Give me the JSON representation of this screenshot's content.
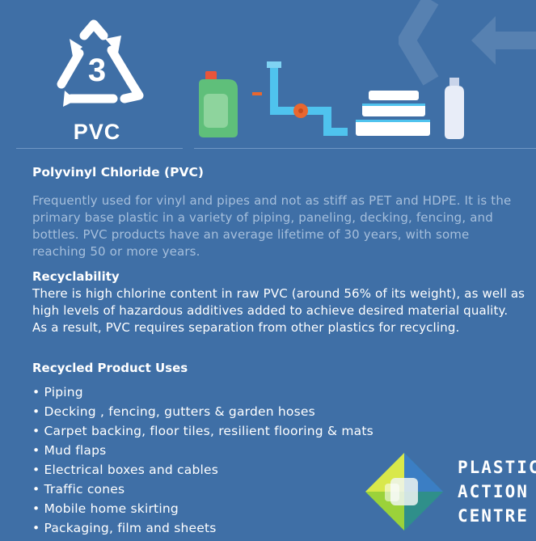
{
  "resin": {
    "code": "3",
    "label": "PVC"
  },
  "title": "Polyvinyl Chloride (PVC)",
  "intro": "Frequently used for vinyl and pipes and not as stiff as PET and HDPE. It is the primary base plastic in a variety of piping, paneling, decking, fencing, and bottles. PVC products have an average lifetime of 30 years, with some reaching 50 or more years.",
  "recyclability": {
    "heading": "Recyclability",
    "body": "There is high chlorine content in raw PVC (around 56% of its weight), as well as high levels of hazardous additives added to achieve desired material quality. As a result, PVC requires separation from other plastics for recycling."
  },
  "uses": {
    "heading": "Recycled Product Uses",
    "items": [
      "Piping",
      "Decking , fencing, gutters & garden hoses",
      "Carpet backing, floor tiles, resilient flooring & mats",
      "Mud flaps",
      "Electrical boxes and cables",
      "Traffic cones",
      "Mobile home skirting",
      "Packaging, film and sheets"
    ]
  },
  "logo": {
    "line1": "PLASTIC",
    "line2": "ACTION",
    "line3": "CENTRE"
  },
  "icons": [
    "recycle-triangle-icon",
    "detergent-jug-icon",
    "pipe-valve-icon",
    "stacked-containers-icon",
    "bottle-icon"
  ],
  "colors": {
    "background": "#3f6fa6",
    "muted_text": "#a6bfdc",
    "jug_green": "#5fbf7a",
    "pipe_blue": "#4fc3ee",
    "valve_orange": "#e8672f"
  }
}
